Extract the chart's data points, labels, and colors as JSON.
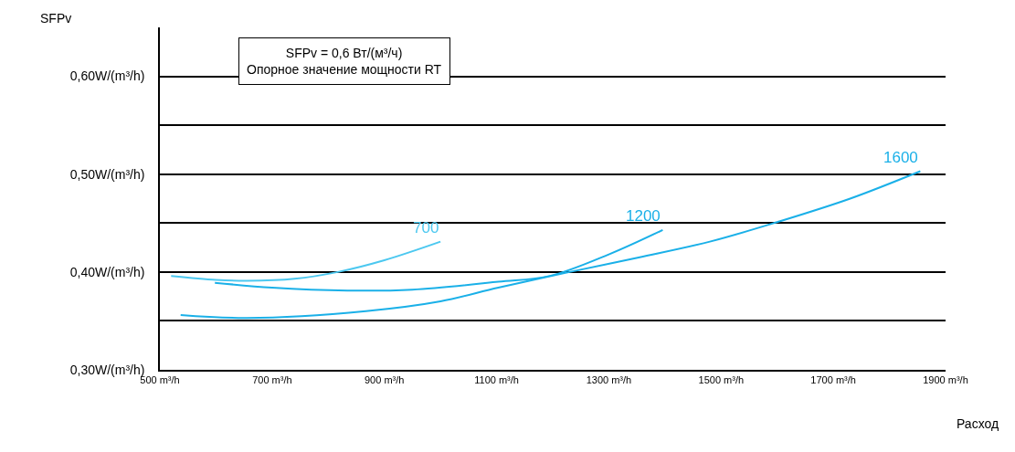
{
  "chart_data": {
    "type": "line",
    "xlabel": "Расход",
    "ylabel": "SFPv",
    "annotations": [
      "SFPv = 0,6 Вт/(м³/ч)\nОпорное значение мощности RT"
    ],
    "xlim": [
      500,
      1900
    ],
    "xticks": [
      {
        "value": 500,
        "label": "500 m³/h"
      },
      {
        "value": 700,
        "label": "700 m³/h"
      },
      {
        "value": 900,
        "label": "900 m³/h"
      },
      {
        "value": 1100,
        "label": "1100 m³/h"
      },
      {
        "value": 1300,
        "label": "1300 m³/h"
      },
      {
        "value": 1500,
        "label": "1500 m³/h"
      },
      {
        "value": 1700,
        "label": "1700 m³/h"
      },
      {
        "value": 1900,
        "label": "1900 m³/h"
      }
    ],
    "ylim": [
      0.3,
      0.65
    ],
    "yticks": [
      {
        "value": 0.3,
        "label": "0,30W/(m³/h)"
      },
      {
        "value": 0.35,
        "label": null
      },
      {
        "value": 0.4,
        "label": "0,40W/(m³/h)"
      },
      {
        "value": 0.45,
        "label": null
      },
      {
        "value": 0.5,
        "label": "0,50W/(m³/h)"
      },
      {
        "value": 0.55,
        "label": null
      },
      {
        "value": 0.6,
        "label": "0,60W/(m³/h)"
      }
    ],
    "grid": "y",
    "legend": false,
    "marker": "none",
    "line_style": "solid",
    "series": [
      {
        "name": "700",
        "color": "#4cc8f0",
        "x": [
          520,
          600,
          655,
          740,
          817,
          900,
          1000
        ],
        "values": [
          0.396,
          0.392,
          0.391,
          0.393,
          0.4,
          0.412,
          0.431
        ]
      },
      {
        "name": "1200",
        "color": "#1ab0e8",
        "x": [
          598,
          700,
          834,
          950,
          1103,
          1195,
          1300,
          1396
        ],
        "values": [
          0.389,
          0.384,
          0.381,
          0.382,
          0.39,
          0.396,
          0.418,
          0.443
        ]
      },
      {
        "name": "1600",
        "color": "#1ab0e8",
        "x": [
          537,
          655,
          867,
          1000,
          1103,
          1230,
          1355,
          1480,
          1600,
          1730,
          1855
        ],
        "values": [
          0.356,
          0.353,
          0.36,
          0.37,
          0.384,
          0.4,
          0.415,
          0.431,
          0.451,
          0.475,
          0.503
        ]
      }
    ]
  }
}
